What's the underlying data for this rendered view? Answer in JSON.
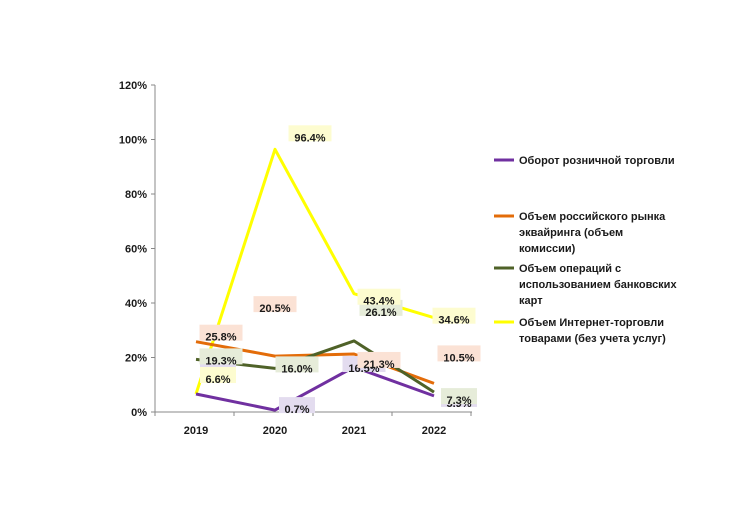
{
  "chart_data": {
    "type": "line",
    "title": "",
    "xlabel": "",
    "ylabel": "",
    "x": [
      "2019",
      "2020",
      "2021",
      "2022"
    ],
    "ylim": [
      0,
      120
    ],
    "yticks": [
      "0%",
      "20%",
      "40%",
      "60%",
      "80%",
      "100%",
      "120%"
    ],
    "grid": false,
    "legend_position": "right",
    "series": [
      {
        "name": "Оборот розничной торговли",
        "values": [
          6.6,
          0.7,
          16.5,
          5.9
        ],
        "labels": [
          "6.6%",
          "0.7%",
          "16.5%",
          "5.9%"
        ],
        "color": "#7030a0",
        "label_bg": "#e3dcef"
      },
      {
        "name": "Объем российского рынка эквайринга (объем комиссии)",
        "values": [
          25.8,
          20.5,
          21.3,
          10.5
        ],
        "labels": [
          "25.8%",
          "20.5%",
          "21.3%",
          "10.5%"
        ],
        "color": "#e36c09",
        "label_bg": "#fbe2d5"
      },
      {
        "name": "Объем операций с использованием банковских карт",
        "values": [
          19.3,
          16.0,
          26.1,
          7.3
        ],
        "labels": [
          "19.3%",
          "16.0%",
          "26.1%",
          "7.3%"
        ],
        "color": "#4f6228",
        "label_bg": "#e6ecd9"
      },
      {
        "name": "Объем Интернет-торговли товарами (без учета услуг)",
        "values": [
          6.6,
          96.4,
          43.4,
          34.6
        ],
        "labels": [
          "6.6%",
          "96.4%",
          "43.4%",
          "34.6%"
        ],
        "color": "#ffff00",
        "label_bg": "#fdfcd0"
      }
    ]
  }
}
